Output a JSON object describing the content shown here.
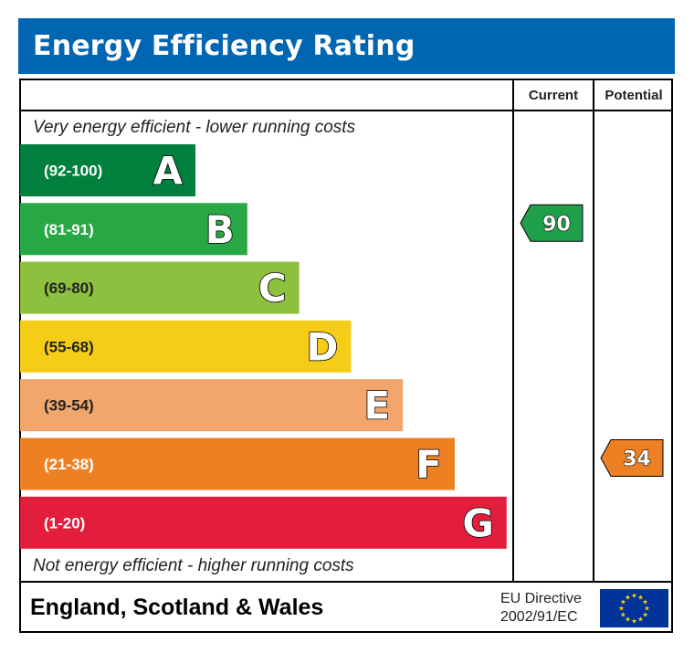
{
  "header": {
    "title": "Energy Efficiency Rating"
  },
  "columns": {
    "current": "Current",
    "potential": "Potential"
  },
  "notes": {
    "top": "Very energy efficient - lower running costs",
    "bottom": "Not energy efficient - higher running costs"
  },
  "footer": {
    "region": "England, Scotland & Wales",
    "directive_line1": "EU Directive",
    "directive_line2": "2002/91/EC",
    "flag_icon": "eu-flag-icon"
  },
  "chart_data": {
    "type": "bar",
    "categories": [
      "A",
      "B",
      "C",
      "D",
      "E",
      "F",
      "G"
    ],
    "bands": [
      {
        "letter": "A",
        "range": "(92-100)",
        "min": 92,
        "max": 100,
        "color": "#007f3d"
      },
      {
        "letter": "B",
        "range": "(81-91)",
        "min": 81,
        "max": 91,
        "color": "#28a745"
      },
      {
        "letter": "C",
        "range": "(69-80)",
        "min": 69,
        "max": 80,
        "color": "#8dc03f"
      },
      {
        "letter": "D",
        "range": "(55-68)",
        "min": 55,
        "max": 68,
        "color": "#f5cd17"
      },
      {
        "letter": "E",
        "range": "(39-54)",
        "min": 39,
        "max": 54,
        "color": "#f2a66b"
      },
      {
        "letter": "F",
        "range": "(21-38)",
        "min": 21,
        "max": 38,
        "color": "#ee8024"
      },
      {
        "letter": "G",
        "range": "(1-20)",
        "min": 1,
        "max": 20,
        "color": "#e21e3c"
      }
    ],
    "ratings": [
      {
        "column": "current",
        "value": 90,
        "band": "B",
        "color": "#1fa048"
      },
      {
        "column": "potential",
        "value": 34,
        "band": "F",
        "color": "#ee8024"
      }
    ]
  }
}
